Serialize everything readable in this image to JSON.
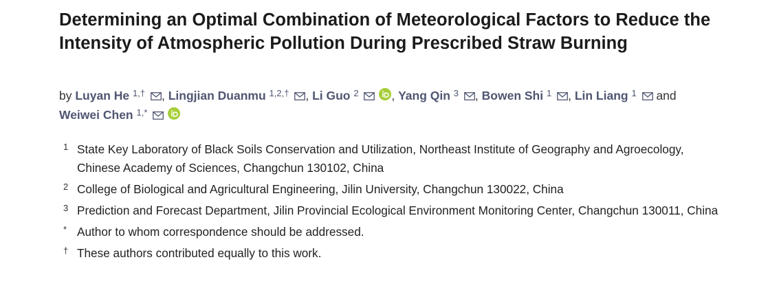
{
  "article": {
    "title": "Determining an Optimal Combination of Meteorological Factors to Reduce the Intensity of Atmospheric Pollution During Prescribed Straw Burning"
  },
  "authors": {
    "by_label": "by",
    "and_label": "and",
    "list": [
      {
        "name": "Luyan He",
        "aff": "1,†",
        "orcid": false
      },
      {
        "name": "Lingjian Duanmu",
        "aff": "1,2,†",
        "orcid": false
      },
      {
        "name": "Li Guo",
        "aff": "2",
        "orcid": true
      },
      {
        "name": "Yang Qin",
        "aff": "3",
        "orcid": false
      },
      {
        "name": "Bowen Shi",
        "aff": "1",
        "orcid": false
      },
      {
        "name": "Lin Liang",
        "aff": "1",
        "orcid": false
      },
      {
        "name": "Weiwei Chen",
        "aff": "1,*",
        "orcid": true
      }
    ]
  },
  "affiliations": [
    {
      "mark": "1",
      "text": "State Key Laboratory of Black Soils Conservation and Utilization, Northeast Institute of Geography and Agroecology, Chinese Academy of Sciences, Changchun 130102, China"
    },
    {
      "mark": "2",
      "text": "College of Biological and Agricultural Engineering, Jilin University, Changchun 130022, China"
    },
    {
      "mark": "3",
      "text": "Prediction and Forecast Department, Jilin Provincial Ecological Environment Monitoring Center, Changchun 130011, China"
    },
    {
      "mark": "*",
      "text": "Author to whom correspondence should be addressed."
    },
    {
      "mark": "†",
      "text": "These authors contributed equally to this work."
    }
  ],
  "icons": {
    "mail": "envelope-icon",
    "orcid": "orcid-icon"
  },
  "colors": {
    "author_link": "#4f5671",
    "orcid_green": "#a6ce39",
    "title": "#1b1b1b"
  }
}
